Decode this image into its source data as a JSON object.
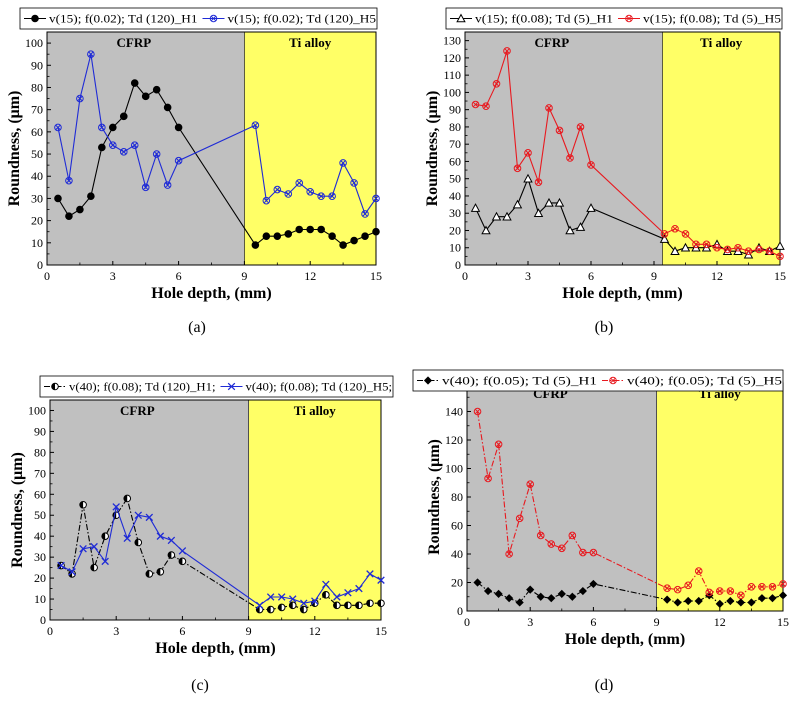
{
  "colors": {
    "cfrp_region": "#c0c0c0",
    "ti_region": "#ffff66",
    "black_series": "#000000",
    "blue_series": "#1f2bd6",
    "red_series": "#e8191f"
  },
  "chart_data": [
    {
      "type": "line",
      "panel_label": "(a)",
      "xlabel": "Hole depth, (mm)",
      "ylabel": "Roundness, (μm)",
      "xlim": [
        0,
        15
      ],
      "ylim": [
        0,
        105
      ],
      "xticks": [
        0,
        3,
        6,
        9,
        12,
        15
      ],
      "yticks": [
        0,
        10,
        20,
        30,
        40,
        50,
        60,
        70,
        80,
        90,
        100
      ],
      "regions": [
        {
          "label": "CFRP",
          "x": [
            0,
            9
          ]
        },
        {
          "label": "Ti alloy",
          "x": [
            9,
            15
          ]
        }
      ],
      "legend_placement": "top",
      "series": [
        {
          "name": "v(15); f(0.02); Td (120)_H1",
          "color": "#000000",
          "marker": "filled-circle",
          "line": "solid",
          "x": [
            0.5,
            1,
            1.5,
            2,
            2.5,
            3,
            3.5,
            4,
            4.5,
            5,
            5.5,
            6,
            9.5,
            10,
            10.5,
            11,
            11.5,
            12,
            12.5,
            13,
            13.5,
            14,
            14.5,
            15
          ],
          "y": [
            30,
            22,
            25,
            31,
            53,
            62,
            67,
            82,
            76,
            79,
            71,
            62,
            9,
            13,
            13,
            14,
            16,
            16,
            16,
            13,
            9,
            11,
            13,
            15
          ]
        },
        {
          "name": "v(15); f(0.02); Td (120)_H5",
          "color": "#1f2bd6",
          "marker": "circle-x",
          "line": "solid",
          "x": [
            0.5,
            1,
            1.5,
            2,
            2.5,
            3,
            3.5,
            4,
            4.5,
            5,
            5.5,
            6,
            9.5,
            10,
            10.5,
            11,
            11.5,
            12,
            12.5,
            13,
            13.5,
            14,
            14.5,
            15
          ],
          "y": [
            62,
            38,
            75,
            95,
            62,
            54,
            51,
            54,
            35,
            50,
            36,
            47,
            63,
            29,
            34,
            32,
            37,
            33,
            31,
            31,
            46,
            37,
            23,
            30
          ]
        }
      ]
    },
    {
      "type": "line",
      "panel_label": "(b)",
      "xlabel": "Hole depth, (mm)",
      "ylabel": "Roundness, (μm)",
      "xlim": [
        0,
        15
      ],
      "ylim": [
        0,
        135
      ],
      "xticks": [
        0,
        3,
        6,
        9,
        12,
        15
      ],
      "yticks": [
        0,
        10,
        20,
        30,
        40,
        50,
        60,
        70,
        80,
        90,
        100,
        110,
        120,
        130
      ],
      "regions": [
        {
          "label": "CFRP",
          "x": [
            0,
            9.4
          ]
        },
        {
          "label": "Ti alloy",
          "x": [
            9.4,
            15
          ]
        }
      ],
      "legend_placement": "top",
      "series": [
        {
          "name": "v(15); f(0.08); Td (5)_H1",
          "color": "#000000",
          "marker": "open-triangle",
          "line": "solid",
          "x": [
            0.5,
            1,
            1.5,
            2,
            2.5,
            3,
            3.5,
            4,
            4.5,
            5,
            5.5,
            6,
            9.5,
            10,
            10.5,
            11,
            11.5,
            12,
            12.5,
            13,
            13.5,
            14,
            14.5,
            15
          ],
          "y": [
            33,
            20,
            28,
            28,
            35,
            50,
            30,
            36,
            36,
            20,
            22,
            33,
            15,
            8,
            10,
            10,
            10,
            12,
            8,
            8,
            6,
            10,
            8,
            11
          ]
        },
        {
          "name": "v(15); f(0.08); Td (5)_H5",
          "color": "#e8191f",
          "marker": "circle-x",
          "line": "solid",
          "x": [
            0.5,
            1,
            1.5,
            2,
            2.5,
            3,
            3.5,
            4,
            4.5,
            5,
            5.5,
            6,
            9.5,
            10,
            10.5,
            11,
            11.5,
            12,
            12.5,
            13,
            13.5,
            14,
            14.5,
            15
          ],
          "y": [
            93,
            92,
            105,
            124,
            56,
            65,
            48,
            91,
            78,
            62,
            80,
            58,
            18,
            21,
            18,
            12,
            12,
            10,
            9,
            10,
            8,
            9,
            8,
            5
          ]
        }
      ]
    },
    {
      "type": "line",
      "panel_label": "(c)",
      "xlabel": "Hole depth, (mm)",
      "ylabel": "Roundness, (μm)",
      "xlim": [
        0,
        15
      ],
      "ylim": [
        0,
        105
      ],
      "xticks": [
        0,
        3,
        6,
        9,
        12,
        15
      ],
      "yticks": [
        0,
        10,
        20,
        30,
        40,
        50,
        60,
        70,
        80,
        90,
        100
      ],
      "regions": [
        {
          "label": "CFRP",
          "x": [
            0,
            9
          ]
        },
        {
          "label": "Ti alloy",
          "x": [
            9,
            15
          ]
        }
      ],
      "legend_placement": "top",
      "series": [
        {
          "name": "v(40); f(0.08); Td (120)_H1;",
          "color": "#000000",
          "marker": "half-circle",
          "line": "dash-dot",
          "x": [
            0.5,
            1,
            1.5,
            2,
            2.5,
            3,
            3.5,
            4,
            4.5,
            5,
            5.5,
            6,
            9.5,
            10,
            10.5,
            11,
            11.5,
            12,
            12.5,
            13,
            13.5,
            14,
            14.5,
            15
          ],
          "y": [
            26,
            22,
            55,
            25,
            40,
            50,
            58,
            37,
            22,
            23,
            31,
            28,
            5,
            5,
            6,
            7,
            5,
            8,
            12,
            7,
            7,
            7,
            8,
            8
          ]
        },
        {
          "name": "v(40); f(0.08); Td (120)_H5;",
          "color": "#1f2bd6",
          "marker": "x",
          "line": "solid",
          "x": [
            0.5,
            1,
            1.5,
            2,
            2.5,
            3,
            3.5,
            4,
            4.5,
            5,
            5.5,
            6,
            9.5,
            10,
            10.5,
            11,
            11.5,
            12,
            12.5,
            13,
            13.5,
            14,
            14.5,
            15
          ],
          "y": [
            26,
            23,
            34,
            35,
            28,
            54,
            39,
            50,
            49,
            40,
            38,
            33,
            7,
            11,
            11,
            10,
            8,
            9,
            17,
            11,
            13,
            15,
            22,
            19
          ]
        }
      ]
    },
    {
      "type": "line",
      "panel_label": "(d)",
      "xlabel": "Hole depth, (mm)",
      "ylabel": "Roundness, (μm)",
      "xlim": [
        0,
        15
      ],
      "ylim": [
        0,
        160
      ],
      "xticks": [
        0,
        3,
        6,
        9,
        12,
        15
      ],
      "yticks": [
        0,
        20,
        40,
        60,
        80,
        100,
        120,
        140,
        160
      ],
      "regions": [
        {
          "label": "CFRP",
          "x": [
            0,
            9
          ]
        },
        {
          "label": "Ti alloy",
          "x": [
            9,
            15
          ]
        }
      ],
      "legend_placement": "top",
      "series": [
        {
          "name": "v(40); f(0.05); Td (5)_H1",
          "color": "#000000",
          "marker": "filled-diamond",
          "line": "dash-dot",
          "x": [
            0.5,
            1,
            1.5,
            2,
            2.5,
            3,
            3.5,
            4,
            4.5,
            5,
            5.5,
            6,
            9.5,
            10,
            10.5,
            11,
            11.5,
            12,
            12.5,
            13,
            13.5,
            14,
            14.5,
            15
          ],
          "y": [
            20,
            14,
            12,
            9,
            6,
            15,
            10,
            9,
            12,
            10,
            14,
            19,
            8,
            6,
            7,
            7,
            11,
            5,
            7,
            6,
            6,
            9,
            9,
            11
          ]
        },
        {
          "name": "v(40); f(0.05); Td (5)_H5",
          "color": "#e8191f",
          "marker": "circle-x",
          "line": "dash-dot",
          "x": [
            0.5,
            1,
            1.5,
            2,
            2.5,
            3,
            3.5,
            4,
            4.5,
            5,
            5.5,
            6,
            9.5,
            10,
            10.5,
            11,
            11.5,
            12,
            12.5,
            13,
            13.5,
            14,
            14.5,
            15
          ],
          "y": [
            140,
            93,
            117,
            40,
            65,
            89,
            53,
            47,
            44,
            53,
            41,
            41,
            16,
            15,
            18,
            28,
            13,
            14,
            14,
            11,
            17,
            17,
            17,
            19
          ]
        }
      ]
    }
  ]
}
